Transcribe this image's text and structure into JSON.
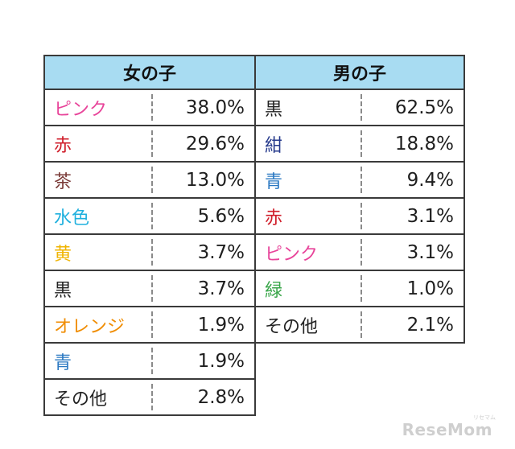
{
  "girls": {
    "header": "女の子",
    "rows": [
      {
        "name": "ピンク",
        "value": "38.0%",
        "color": "#e8449a"
      },
      {
        "name": "赤",
        "value": "29.6%",
        "color": "#d01f2c"
      },
      {
        "name": "茶",
        "value": "13.0%",
        "color": "#7a3b38"
      },
      {
        "name": "水色",
        "value": "5.6%",
        "color": "#1fb0de"
      },
      {
        "name": "黄",
        "value": "3.7%",
        "color": "#f0b400"
      },
      {
        "name": "黒",
        "value": "3.7%",
        "color": "#222222"
      },
      {
        "name": "オレンジ",
        "value": "1.9%",
        "color": "#f08c00"
      },
      {
        "name": "青",
        "value": "1.9%",
        "color": "#2a78c2"
      },
      {
        "name": "その他",
        "value": "2.8%",
        "color": "#222222"
      }
    ]
  },
  "boys": {
    "header": "男の子",
    "rows": [
      {
        "name": "黒",
        "value": "62.5%",
        "color": "#222222"
      },
      {
        "name": "紺",
        "value": "18.8%",
        "color": "#263a8c"
      },
      {
        "name": "青",
        "value": "9.4%",
        "color": "#2a78c2"
      },
      {
        "name": "赤",
        "value": "3.1%",
        "color": "#d01f2c"
      },
      {
        "name": "ピンク",
        "value": "3.1%",
        "color": "#e8449a"
      },
      {
        "name": "緑",
        "value": "1.0%",
        "color": "#3aa64a"
      },
      {
        "name": "その他",
        "value": "2.1%",
        "color": "#222222"
      }
    ]
  },
  "watermark": {
    "main": "ReseMom",
    "sub": "リセマム"
  }
}
